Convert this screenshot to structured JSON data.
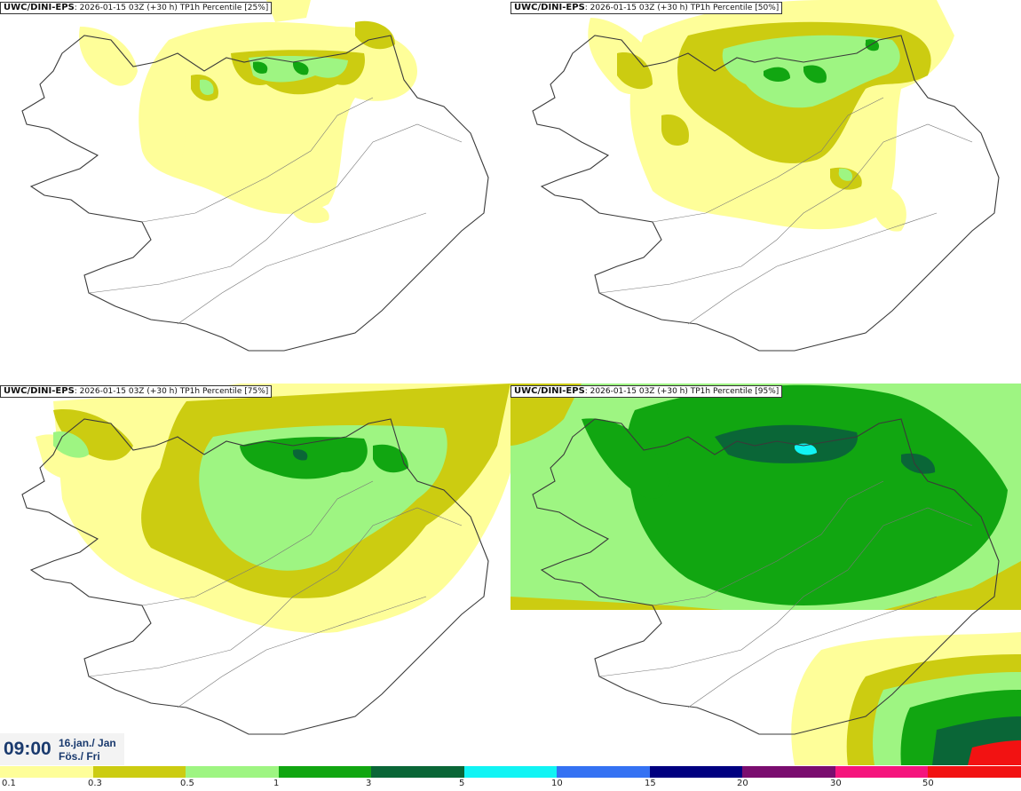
{
  "panels": [
    {
      "model": "UWC/DINI-EPS",
      "run": "2026-01-15 03Z (+30 h) TP1h Percentile [25%]",
      "percentile": 25
    },
    {
      "model": "UWC/DINI-EPS",
      "run": "2026-01-15 03Z (+30 h) TP1h Percentile [50%]",
      "percentile": 50
    },
    {
      "model": "UWC/DINI-EPS",
      "run": "2026-01-15 03Z (+30 h) TP1h Percentile [75%]",
      "percentile": 75
    },
    {
      "model": "UWC/DINI-EPS",
      "run": "2026-01-15 03Z (+30 h) TP1h Percentile [95%]",
      "percentile": 95
    }
  ],
  "valid_time": {
    "time": "09:00",
    "date_line": "16.jan./ Jan",
    "day_line": "Fös./ Fri"
  },
  "legend": {
    "labels": [
      "0.1",
      "0.3",
      "0.5",
      "1",
      "3",
      "5",
      "10",
      "15",
      "20",
      "30",
      "50"
    ],
    "colors": [
      "#fefe99",
      "#cccc11",
      "#9ef582",
      "#11a611",
      "#0a6637",
      "#11f4f4",
      "#3572f3",
      "#000080",
      "#7a0d6f",
      "#f5157d",
      "#f21212"
    ]
  }
}
